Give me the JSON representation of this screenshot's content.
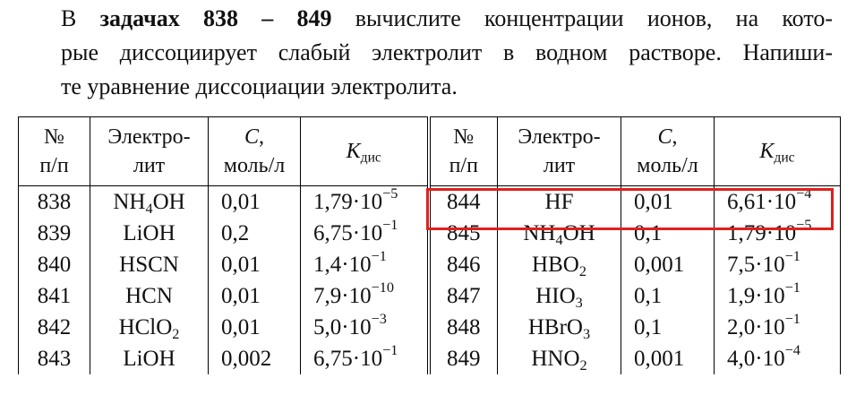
{
  "intro": {
    "lines": [
      [
        {
          "text": "В "
        },
        {
          "bold": "задачах 838 – 849"
        },
        {
          "text": " вычислите концентрации ионов, на кото-"
        }
      ],
      [
        {
          "text": "рые диссоциирует слабый электролит в водном растворе. Напиши-"
        }
      ],
      [
        {
          "text": "те уравнение диссоциации электролита."
        }
      ]
    ]
  },
  "table": {
    "header": [
      [
        "№",
        "п/п"
      ],
      [
        "Электро-",
        "лит"
      ],
      [
        [
          {
            "italic": "C"
          },
          {
            "text": ","
          }
        ],
        "моль/л"
      ],
      [
        [
          {
            "italic": "K"
          },
          {
            "sub": "дис"
          }
        ]
      ],
      [
        "№",
        "п/п"
      ],
      [
        "Электро-",
        "лит"
      ],
      [
        [
          {
            "italic": "C"
          },
          {
            "text": ","
          }
        ],
        "моль/л"
      ],
      [
        [
          {
            "italic": "K"
          },
          {
            "sub": "дис"
          }
        ]
      ]
    ],
    "rows": [
      [
        "838",
        [
          {
            "text": "NH"
          },
          {
            "sub": "4"
          },
          {
            "text": "OH"
          }
        ],
        "0,01",
        [
          {
            "text": "1,79·10"
          },
          {
            "sup": "−5"
          }
        ],
        "844",
        "HF",
        "0,01",
        [
          {
            "text": "6,61·10"
          },
          {
            "sup": "−4"
          }
        ]
      ],
      [
        "839",
        "LiOH",
        "0,2",
        [
          {
            "text": "6,75·10"
          },
          {
            "sup": "−1"
          }
        ],
        "845",
        [
          {
            "text": "NH"
          },
          {
            "sub": "4"
          },
          {
            "text": "OH"
          }
        ],
        "0,1",
        [
          {
            "text": "1,79·10"
          },
          {
            "sup": "−5"
          }
        ]
      ],
      [
        "840",
        "HSCN",
        "0,01",
        [
          {
            "text": "1,4·10"
          },
          {
            "sup": "−1"
          }
        ],
        "846",
        [
          {
            "text": "HBO"
          },
          {
            "sub": "2"
          }
        ],
        "0,001",
        [
          {
            "text": "7,5·10"
          },
          {
            "sup": "−1"
          }
        ]
      ],
      [
        "841",
        "HCN",
        "0,01",
        [
          {
            "text": "7,9·10"
          },
          {
            "sup": "−10"
          }
        ],
        "847",
        [
          {
            "text": "HIO"
          },
          {
            "sub": "3"
          }
        ],
        "0,1",
        [
          {
            "text": "1,9·10"
          },
          {
            "sup": "−1"
          }
        ]
      ],
      [
        "842",
        [
          {
            "text": "HClO"
          },
          {
            "sub": "2"
          }
        ],
        "0,01",
        [
          {
            "text": "5,0·10"
          },
          {
            "sup": "−3"
          }
        ],
        "848",
        [
          {
            "text": "HBrO"
          },
          {
            "sub": "3"
          }
        ],
        "0,1",
        [
          {
            "text": "2,0·10"
          },
          {
            "sup": "−1"
          }
        ]
      ],
      [
        "843",
        "LiOH",
        "0,002",
        [
          {
            "text": "6,75·10"
          },
          {
            "sup": "−1"
          }
        ],
        "849",
        [
          {
            "text": "HNO"
          },
          {
            "sub": "2"
          }
        ],
        "0,001",
        [
          {
            "text": "4,0·10"
          },
          {
            "sup": "−4"
          }
        ]
      ]
    ]
  }
}
